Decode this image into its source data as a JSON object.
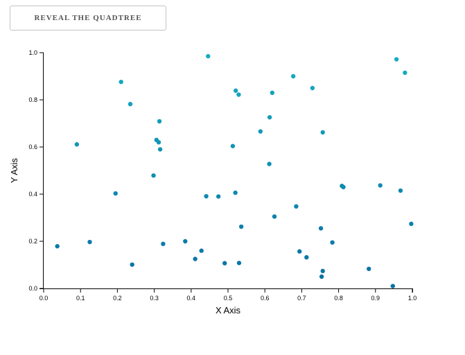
{
  "toolbar": {
    "reveal_label": "REVEAL THE QUADTREE"
  },
  "colors": {
    "point_light": "#17aec2",
    "point_dark": "#0a6fa5",
    "axis": "#000000"
  },
  "chart_data": {
    "type": "scatter",
    "xlabel": "X Axis",
    "ylabel": "Y Axis",
    "xlim": [
      0,
      1
    ],
    "ylim": [
      0,
      1
    ],
    "xticks": [
      "0.0",
      "0.1",
      "0.2",
      "0.3",
      "0.4",
      "0.5",
      "0.6",
      "0.7",
      "0.8",
      "0.9",
      "1.0"
    ],
    "yticks": [
      "0.0",
      "0.2",
      "0.4",
      "0.6",
      "0.8",
      "1.0"
    ],
    "points": [
      {
        "x": 0.446,
        "y": 0.985
      },
      {
        "x": 0.957,
        "y": 0.972
      },
      {
        "x": 0.98,
        "y": 0.915
      },
      {
        "x": 0.677,
        "y": 0.9
      },
      {
        "x": 0.21,
        "y": 0.876
      },
      {
        "x": 0.729,
        "y": 0.85
      },
      {
        "x": 0.521,
        "y": 0.839
      },
      {
        "x": 0.529,
        "y": 0.822
      },
      {
        "x": 0.62,
        "y": 0.83
      },
      {
        "x": 0.235,
        "y": 0.782
      },
      {
        "x": 0.613,
        "y": 0.726
      },
      {
        "x": 0.314,
        "y": 0.709
      },
      {
        "x": 0.588,
        "y": 0.666
      },
      {
        "x": 0.757,
        "y": 0.662
      },
      {
        "x": 0.306,
        "y": 0.63
      },
      {
        "x": 0.312,
        "y": 0.62
      },
      {
        "x": 0.09,
        "y": 0.611
      },
      {
        "x": 0.513,
        "y": 0.604
      },
      {
        "x": 0.316,
        "y": 0.59
      },
      {
        "x": 0.612,
        "y": 0.528
      },
      {
        "x": 0.298,
        "y": 0.479
      },
      {
        "x": 0.809,
        "y": 0.435
      },
      {
        "x": 0.813,
        "y": 0.43
      },
      {
        "x": 0.913,
        "y": 0.437
      },
      {
        "x": 0.968,
        "y": 0.415
      },
      {
        "x": 0.195,
        "y": 0.403
      },
      {
        "x": 0.52,
        "y": 0.406
      },
      {
        "x": 0.441,
        "y": 0.391
      },
      {
        "x": 0.474,
        "y": 0.39
      },
      {
        "x": 0.685,
        "y": 0.348
      },
      {
        "x": 0.626,
        "y": 0.305
      },
      {
        "x": 0.997,
        "y": 0.274
      },
      {
        "x": 0.536,
        "y": 0.262
      },
      {
        "x": 0.752,
        "y": 0.255
      },
      {
        "x": 0.037,
        "y": 0.179
      },
      {
        "x": 0.125,
        "y": 0.197
      },
      {
        "x": 0.384,
        "y": 0.2
      },
      {
        "x": 0.324,
        "y": 0.189
      },
      {
        "x": 0.783,
        "y": 0.195
      },
      {
        "x": 0.428,
        "y": 0.16
      },
      {
        "x": 0.694,
        "y": 0.157
      },
      {
        "x": 0.411,
        "y": 0.125
      },
      {
        "x": 0.713,
        "y": 0.132
      },
      {
        "x": 0.24,
        "y": 0.101
      },
      {
        "x": 0.491,
        "y": 0.107
      },
      {
        "x": 0.53,
        "y": 0.108
      },
      {
        "x": 0.882,
        "y": 0.083
      },
      {
        "x": 0.757,
        "y": 0.074
      },
      {
        "x": 0.754,
        "y": 0.05
      },
      {
        "x": 0.947,
        "y": 0.01
      }
    ]
  }
}
